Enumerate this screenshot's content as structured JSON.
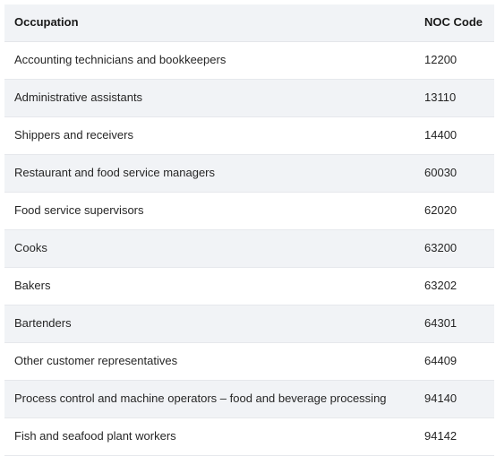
{
  "table": {
    "headers": {
      "occupation": "Occupation",
      "noc_code": "NOC Code"
    },
    "rows": [
      {
        "occupation": "Accounting technicians and bookkeepers",
        "noc_code": "12200"
      },
      {
        "occupation": "Administrative assistants",
        "noc_code": "13110"
      },
      {
        "occupation": "Shippers and receivers",
        "noc_code": "14400"
      },
      {
        "occupation": "Restaurant and food service managers",
        "noc_code": "60030"
      },
      {
        "occupation": "Food service supervisors",
        "noc_code": "62020"
      },
      {
        "occupation": "Cooks",
        "noc_code": "63200"
      },
      {
        "occupation": "Bakers",
        "noc_code": "63202"
      },
      {
        "occupation": "Bartenders",
        "noc_code": "64301"
      },
      {
        "occupation": "Other customer representatives",
        "noc_code": "64409"
      },
      {
        "occupation": "Process control and machine operators – food and beverage processing",
        "noc_code": "94140"
      },
      {
        "occupation": "Fish and seafood plant workers",
        "noc_code": "94142"
      }
    ]
  },
  "colors": {
    "header_bg": "#f1f3f6",
    "stripe_bg": "#f1f3f6",
    "row_border": "#e6e8ec"
  }
}
